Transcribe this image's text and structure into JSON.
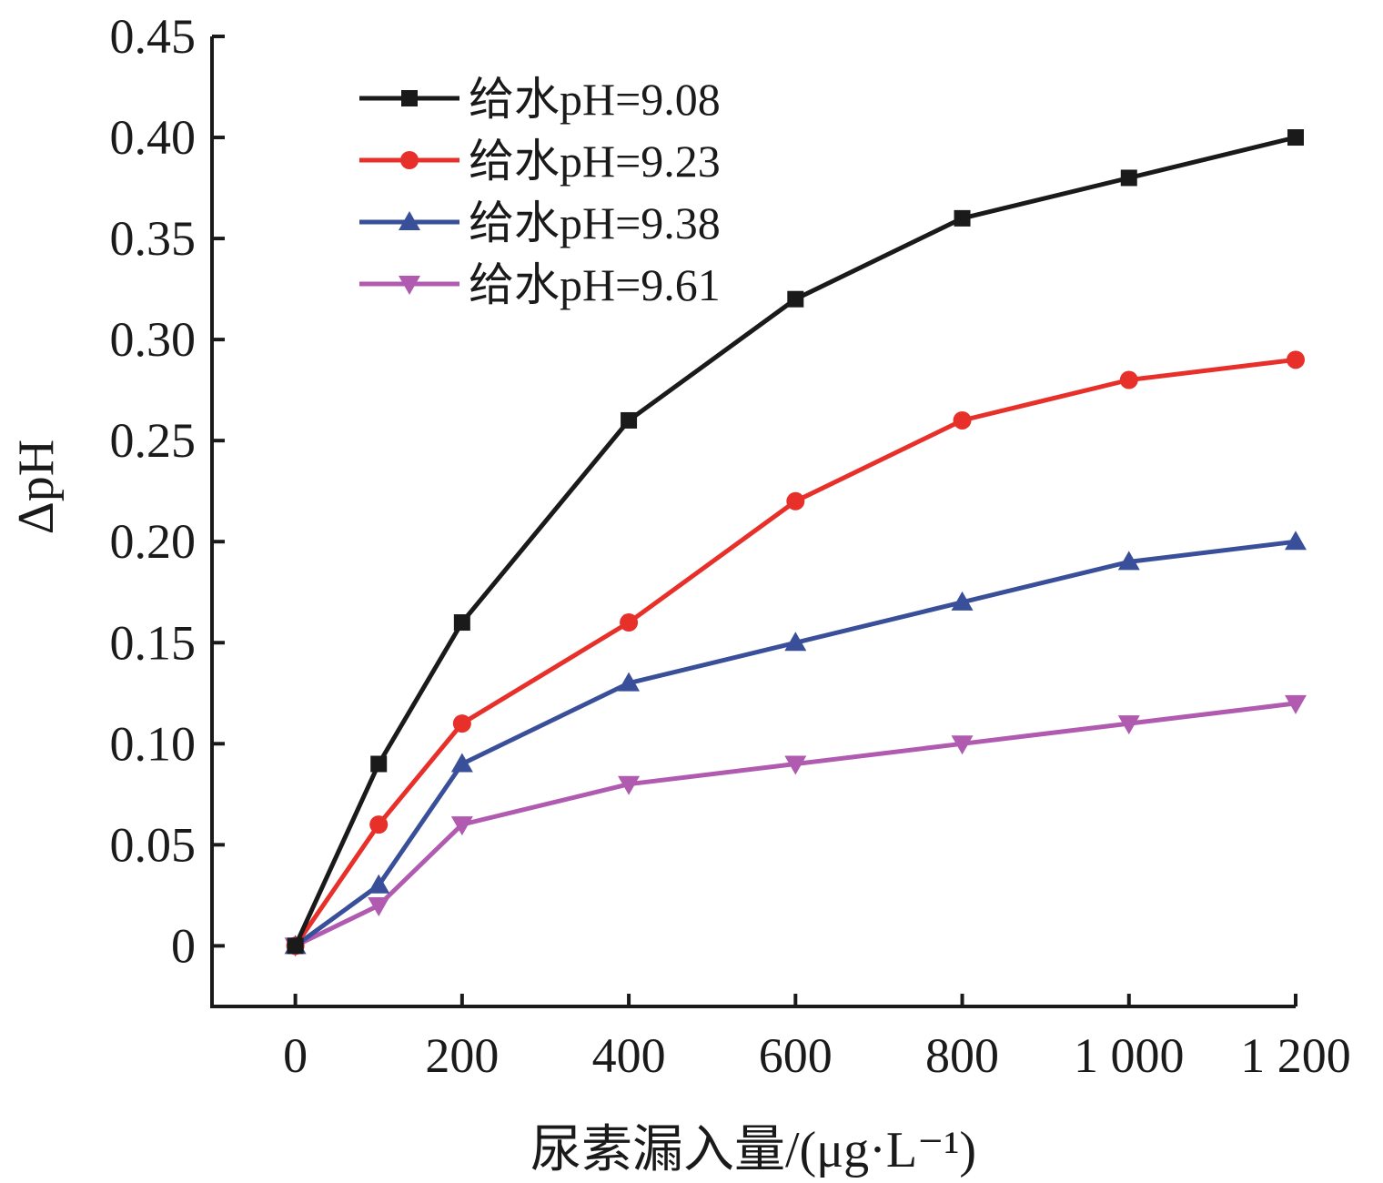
{
  "chart_data": {
    "type": "line",
    "xlabel": "尿素漏入量/(μg·L⁻¹)",
    "ylabel": "ΔpH",
    "xlim": [
      -100,
      1200
    ],
    "ylim": [
      -0.03,
      0.45
    ],
    "x_ticks": [
      0,
      200,
      400,
      600,
      800,
      1000,
      1200
    ],
    "x_tick_labels": [
      "0",
      "200",
      "400",
      "600",
      "800",
      "1 000",
      "1 200"
    ],
    "y_ticks": [
      0,
      0.05,
      0.1,
      0.15,
      0.2,
      0.25,
      0.3,
      0.35,
      0.4,
      0.45
    ],
    "y_tick_labels": [
      "0",
      "0.05",
      "0.10",
      "0.15",
      "0.20",
      "0.25",
      "0.30",
      "0.35",
      "0.40",
      "0.45"
    ],
    "x": [
      0,
      100,
      200,
      400,
      600,
      800,
      1000,
      1200
    ],
    "series": [
      {
        "name": "给水pH=9.08",
        "color": "#1a1a1a",
        "marker": "square",
        "values": [
          0,
          0.09,
          0.16,
          0.26,
          0.32,
          0.36,
          0.38,
          0.4
        ]
      },
      {
        "name": "给水pH=9.23",
        "color": "#e8302a",
        "marker": "circle",
        "values": [
          0,
          0.06,
          0.11,
          0.16,
          0.22,
          0.26,
          0.28,
          0.29
        ]
      },
      {
        "name": "给水pH=9.38",
        "color": "#3a4f9a",
        "marker": "triangle-up",
        "values": [
          0,
          0.03,
          0.09,
          0.13,
          0.15,
          0.17,
          0.19,
          0.2
        ]
      },
      {
        "name": "给水pH=9.61",
        "color": "#b05ab0",
        "marker": "triangle-down",
        "values": [
          0,
          0.02,
          0.06,
          0.08,
          0.09,
          0.1,
          0.11,
          0.12
        ]
      }
    ],
    "legend_position": "top-left",
    "grid": false
  }
}
